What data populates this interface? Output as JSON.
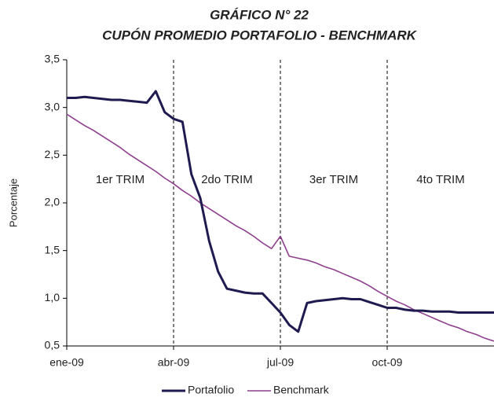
{
  "chart_data": {
    "type": "line",
    "title": "GRÁFICO N° 22",
    "subtitle": "CUPÓN PROMEDIO PORTAFOLIO - BENCHMARK",
    "y_label": "Porcentaje",
    "x": [
      "ene-09",
      null,
      null,
      null,
      null,
      null,
      null,
      null,
      null,
      null,
      null,
      null,
      "abr-09",
      null,
      null,
      null,
      null,
      null,
      null,
      null,
      null,
      null,
      null,
      null,
      "jul-09",
      null,
      null,
      null,
      null,
      null,
      null,
      null,
      null,
      null,
      null,
      null,
      "oct-09",
      null,
      null,
      null,
      null,
      null,
      null,
      null,
      null,
      null,
      null,
      null,
      null
    ],
    "series": [
      {
        "name": "Portafolio",
        "color": "#1f1a50",
        "values": [
          3.1,
          3.1,
          3.11,
          3.1,
          3.09,
          3.08,
          3.08,
          3.07,
          3.06,
          3.05,
          3.17,
          2.95,
          2.88,
          2.85,
          2.3,
          2.05,
          1.6,
          1.28,
          1.1,
          1.08,
          1.06,
          1.05,
          1.05,
          0.95,
          0.85,
          0.72,
          0.65,
          0.95,
          0.97,
          0.98,
          0.99,
          1.0,
          0.99,
          0.99,
          0.96,
          0.93,
          0.9,
          0.9,
          0.88,
          0.87,
          0.87,
          0.86,
          0.86,
          0.86,
          0.85,
          0.85,
          0.85,
          0.85,
          0.85
        ]
      },
      {
        "name": "Benchmark",
        "color": "#8e3f8e",
        "values": [
          2.93,
          2.87,
          2.81,
          2.76,
          2.7,
          2.64,
          2.58,
          2.51,
          2.45,
          2.39,
          2.33,
          2.26,
          2.2,
          2.13,
          2.07,
          2.0,
          1.94,
          1.88,
          1.82,
          1.76,
          1.71,
          1.65,
          1.58,
          1.52,
          1.65,
          1.44,
          1.42,
          1.4,
          1.37,
          1.33,
          1.3,
          1.26,
          1.22,
          1.18,
          1.13,
          1.07,
          1.02,
          0.97,
          0.93,
          0.88,
          0.84,
          0.8,
          0.76,
          0.72,
          0.69,
          0.65,
          0.62,
          0.58,
          0.55
        ]
      }
    ],
    "annotations": [
      "1er TRIM",
      "2do TRIM",
      "3er TRIM",
      "4to TRIM"
    ],
    "ylim": [
      0.5,
      3.5
    ],
    "yticks": [
      {
        "value": 0.5,
        "label": "0,5"
      },
      {
        "value": 1.0,
        "label": "1,0"
      },
      {
        "value": 1.5,
        "label": "1,5"
      },
      {
        "value": 2.0,
        "label": "2,0"
      },
      {
        "value": 2.5,
        "label": "2,5"
      },
      {
        "value": 3.0,
        "label": "3,0"
      },
      {
        "value": 3.5,
        "label": "3,5"
      }
    ],
    "grid": false,
    "legend": "bottom"
  }
}
